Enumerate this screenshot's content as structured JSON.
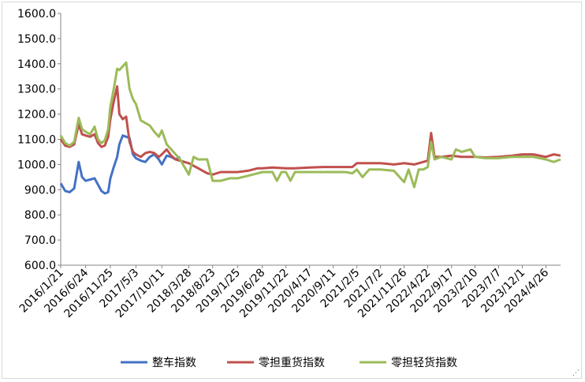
{
  "chart_data": {
    "type": "line",
    "title": "",
    "xlabel": "",
    "ylabel": "",
    "ylim": [
      600,
      1600
    ],
    "y_ticks": [
      "600.0",
      "700.0",
      "800.0",
      "900.0",
      "1000.0",
      "1100.0",
      "1200.0",
      "1300.0",
      "1400.0",
      "1500.0",
      "1600.0"
    ],
    "x_tick_labels": [
      "2016/1/21",
      "2016/6/24",
      "2016/11/25",
      "2017/5/3",
      "2017/10/11",
      "2018/3/28",
      "2018/8/23",
      "2019/1/25",
      "2019/6/28",
      "2019/11/22",
      "2020/4/17",
      "2020/9/11",
      "2021/2/5",
      "2021/7/2",
      "2021/11/26",
      "2022/4/22",
      "2022/9/17",
      "2023/2/10",
      "2023/7/7",
      "2023/12/1",
      "2024/4/26"
    ],
    "x_range": [
      "2016/1/21",
      "2024/7/26"
    ],
    "grid": false,
    "legend": "bottom",
    "series": [
      {
        "name": "整车指数",
        "color": "#4472c4",
        "points": [
          [
            "2016/1/21",
            925
          ],
          [
            "2016/2/18",
            895
          ],
          [
            "2016/3/17",
            890
          ],
          [
            "2016/4/14",
            905
          ],
          [
            "2016/5/12",
            1010
          ],
          [
            "2016/6/2",
            950
          ],
          [
            "2016/6/24",
            935
          ],
          [
            "2016/7/22",
            940
          ],
          [
            "2016/8/19",
            945
          ],
          [
            "2016/9/9",
            920
          ],
          [
            "2016/9/30",
            895
          ],
          [
            "2016/10/21",
            885
          ],
          [
            "2016/11/11",
            890
          ],
          [
            "2016/11/25",
            945
          ],
          [
            "2016/12/16",
            990
          ],
          [
            "2017/1/6",
            1030
          ],
          [
            "2017/1/20",
            1080
          ],
          [
            "2017/2/10",
            1115
          ],
          [
            "2017/3/3",
            1110
          ],
          [
            "2017/3/24",
            1105
          ],
          [
            "2017/4/14",
            1040
          ],
          [
            "2017/5/3",
            1025
          ],
          [
            "2017/6/2",
            1015
          ],
          [
            "2017/6/30",
            1010
          ],
          [
            "2017/7/28",
            1030
          ],
          [
            "2017/8/25",
            1040
          ],
          [
            "2017/9/22",
            1020
          ],
          [
            "2017/10/11",
            1000
          ],
          [
            "2017/11/10",
            1035
          ],
          [
            "2017/12/8",
            1030
          ],
          [
            "2018/1/5",
            1020
          ],
          [
            "2018/2/2",
            1030
          ]
        ]
      },
      {
        "name": "零担重货指数",
        "color": "#c0504d",
        "points": [
          [
            "2016/1/21",
            1100
          ],
          [
            "2016/2/18",
            1075
          ],
          [
            "2016/3/17",
            1070
          ],
          [
            "2016/4/14",
            1080
          ],
          [
            "2016/5/12",
            1160
          ],
          [
            "2016/6/2",
            1120
          ],
          [
            "2016/6/24",
            1115
          ],
          [
            "2016/7/22",
            1110
          ],
          [
            "2016/8/19",
            1120
          ],
          [
            "2016/9/9",
            1085
          ],
          [
            "2016/9/30",
            1070
          ],
          [
            "2016/10/21",
            1075
          ],
          [
            "2016/11/11",
            1110
          ],
          [
            "2016/11/25",
            1180
          ],
          [
            "2016/12/16",
            1250
          ],
          [
            "2017/1/6",
            1310
          ],
          [
            "2017/1/20",
            1200
          ],
          [
            "2017/2/10",
            1180
          ],
          [
            "2017/3/3",
            1190
          ],
          [
            "2017/3/24",
            1090
          ],
          [
            "2017/4/14",
            1050
          ],
          [
            "2017/5/3",
            1040
          ],
          [
            "2017/6/2",
            1030
          ],
          [
            "2017/6/30",
            1045
          ],
          [
            "2017/7/28",
            1050
          ],
          [
            "2017/8/25",
            1045
          ],
          [
            "2017/9/22",
            1030
          ],
          [
            "2017/10/11",
            1040
          ],
          [
            "2017/11/10",
            1060
          ],
          [
            "2017/12/8",
            1035
          ],
          [
            "2018/1/5",
            1020
          ],
          [
            "2018/3/28",
            1005
          ],
          [
            "2018/5/25",
            985
          ],
          [
            "2018/7/20",
            965
          ],
          [
            "2018/8/23",
            960
          ],
          [
            "2018/10/12",
            970
          ],
          [
            "2018/12/7",
            970
          ],
          [
            "2019/1/25",
            970
          ],
          [
            "2019/3/29",
            975
          ],
          [
            "2019/5/31",
            985
          ],
          [
            "2019/6/28",
            985
          ],
          [
            "2019/8/30",
            988
          ],
          [
            "2019/11/22",
            985
          ],
          [
            "2020/1/17",
            985
          ],
          [
            "2020/4/17",
            988
          ],
          [
            "2020/7/10",
            990
          ],
          [
            "2020/9/11",
            990
          ],
          [
            "2020/11/27",
            990
          ],
          [
            "2021/1/8",
            990
          ],
          [
            "2021/2/5",
            1005
          ],
          [
            "2021/4/23",
            1005
          ],
          [
            "2021/7/2",
            1005
          ],
          [
            "2021/9/24",
            1000
          ],
          [
            "2021/11/26",
            1005
          ],
          [
            "2022/1/28",
            1000
          ],
          [
            "2022/3/25",
            1010
          ],
          [
            "2022/4/22",
            1015
          ],
          [
            "2022/5/13",
            1125
          ],
          [
            "2022/6/3",
            1030
          ],
          [
            "2022/7/15",
            1030
          ],
          [
            "2022/9/17",
            1035
          ],
          [
            "2022/11/18",
            1030
          ],
          [
            "2023/1/13",
            1030
          ],
          [
            "2023/2/10",
            1030
          ],
          [
            "2023/4/14",
            1028
          ],
          [
            "2023/7/7",
            1030
          ],
          [
            "2023/9/29",
            1035
          ],
          [
            "2023/12/1",
            1040
          ],
          [
            "2024/2/9",
            1040
          ],
          [
            "2024/4/26",
            1030
          ],
          [
            "2024/6/14",
            1040
          ],
          [
            "2024/7/26",
            1035
          ]
        ]
      },
      {
        "name": "零担轻货指数",
        "color": "#9bbb59",
        "points": [
          [
            "2016/1/21",
            1115
          ],
          [
            "2016/2/18",
            1085
          ],
          [
            "2016/3/17",
            1075
          ],
          [
            "2016/4/14",
            1090
          ],
          [
            "2016/5/12",
            1185
          ],
          [
            "2016/6/2",
            1140
          ],
          [
            "2016/6/24",
            1130
          ],
          [
            "2016/7/22",
            1120
          ],
          [
            "2016/8/19",
            1150
          ],
          [
            "2016/9/9",
            1100
          ],
          [
            "2016/9/30",
            1085
          ],
          [
            "2016/10/21",
            1095
          ],
          [
            "2016/11/11",
            1140
          ],
          [
            "2016/11/25",
            1230
          ],
          [
            "2016/12/16",
            1300
          ],
          [
            "2017/1/6",
            1380
          ],
          [
            "2017/1/20",
            1375
          ],
          [
            "2017/2/10",
            1390
          ],
          [
            "2017/3/3",
            1405
          ],
          [
            "2017/3/24",
            1300
          ],
          [
            "2017/4/14",
            1260
          ],
          [
            "2017/5/3",
            1240
          ],
          [
            "2017/6/2",
            1175
          ],
          [
            "2017/6/30",
            1165
          ],
          [
            "2017/7/28",
            1155
          ],
          [
            "2017/8/25",
            1130
          ],
          [
            "2017/9/22",
            1110
          ],
          [
            "2017/10/11",
            1135
          ],
          [
            "2017/11/10",
            1080
          ],
          [
            "2017/12/8",
            1060
          ],
          [
            "2018/1/5",
            1040
          ],
          [
            "2018/2/2",
            1020
          ],
          [
            "2018/3/28",
            960
          ],
          [
            "2018/4/27",
            1030
          ],
          [
            "2018/5/25",
            1020
          ],
          [
            "2018/7/20",
            1020
          ],
          [
            "2018/8/23",
            935
          ],
          [
            "2018/10/12",
            935
          ],
          [
            "2018/12/7",
            945
          ],
          [
            "2019/1/25",
            945
          ],
          [
            "2019/3/29",
            955
          ],
          [
            "2019/5/31",
            965
          ],
          [
            "2019/6/28",
            970
          ],
          [
            "2019/8/30",
            970
          ],
          [
            "2019/9/27",
            935
          ],
          [
            "2019/10/25",
            970
          ],
          [
            "2019/11/22",
            970
          ],
          [
            "2019/12/20",
            935
          ],
          [
            "2020/1/17",
            970
          ],
          [
            "2020/4/17",
            970
          ],
          [
            "2020/7/10",
            970
          ],
          [
            "2020/9/11",
            970
          ],
          [
            "2020/11/27",
            970
          ],
          [
            "2021/1/8",
            965
          ],
          [
            "2021/2/5",
            980
          ],
          [
            "2021/3/12",
            950
          ],
          [
            "2021/4/23",
            980
          ],
          [
            "2021/7/2",
            980
          ],
          [
            "2021/9/24",
            975
          ],
          [
            "2021/11/26",
            930
          ],
          [
            "2021/12/24",
            980
          ],
          [
            "2022/1/28",
            910
          ],
          [
            "2022/2/25",
            980
          ],
          [
            "2022/3/25",
            980
          ],
          [
            "2022/4/22",
            990
          ],
          [
            "2022/5/13",
            1090
          ],
          [
            "2022/6/3",
            1020
          ],
          [
            "2022/7/15",
            1030
          ],
          [
            "2022/9/17",
            1020
          ],
          [
            "2022/10/14",
            1060
          ],
          [
            "2022/11/18",
            1050
          ],
          [
            "2023/1/13",
            1060
          ],
          [
            "2023/2/10",
            1030
          ],
          [
            "2023/4/14",
            1025
          ],
          [
            "2023/7/7",
            1025
          ],
          [
            "2023/9/29",
            1030
          ],
          [
            "2023/12/1",
            1030
          ],
          [
            "2024/2/9",
            1030
          ],
          [
            "2024/4/26",
            1020
          ],
          [
            "2024/6/14",
            1010
          ],
          [
            "2024/7/26",
            1020
          ]
        ]
      }
    ]
  }
}
